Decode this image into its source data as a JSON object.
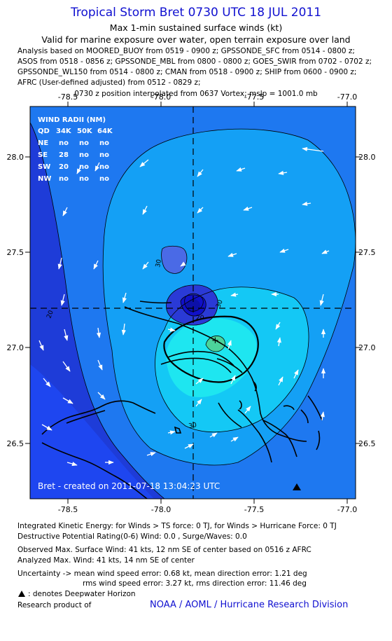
{
  "header": {
    "title": "Tropical Storm Bret 0730 UTC 18 JUL 2011",
    "subtitle": "Max 1-min sustained surface winds (kt)",
    "validity": "Valid for marine exposure over water, open terrain exposure over land",
    "analysis_lines": [
      "Analysis based on MOORED_BUOY from 0519 - 0900 z; GPSSONDE_SFC from 0514 - 0800 z;",
      "ASOS from 0518 - 0856 z; GPSSONDE_MBL from 0800 - 0800 z; GOES_SWIR from 0702 - 0702 z;",
      "GPSSONDE_WL150 from 0514 - 0800 z; CMAN from 0518 - 0900 z; SHIP from 0600 - 0900 z;",
      "AFRC (User-defined adjusted) from 0512 - 0829 z;"
    ],
    "position_note": "0730 z position interpolated from 0637 Vortex; mslp = 1001.0 mb"
  },
  "map": {
    "lon_ticks": [
      "-78.5",
      "-78.0",
      "-77.5",
      "-77.0"
    ],
    "lat_ticks": [
      "28.0",
      "27.5",
      "27.0",
      "26.5"
    ],
    "contour_labels": [
      "30",
      "30",
      "30",
      "20",
      "20"
    ],
    "center_marker": "+",
    "wind_radii": {
      "title": "WIND RADII (NM)",
      "header": [
        "QD",
        "34K",
        "50K",
        "64K"
      ],
      "rows": [
        [
          "NE",
          "no",
          "no",
          "no"
        ],
        [
          "SE",
          "28",
          "no",
          "no"
        ],
        [
          "SW",
          "20",
          "no",
          "no"
        ],
        [
          "NW",
          "no",
          "no",
          "no"
        ]
      ]
    },
    "created_label": "Bret - created on 2011-07-18 13:04:23 UTC",
    "colors": {
      "border": "#1e3cd8",
      "deep": "#1e46f0",
      "mid": "#1e78f0",
      "light": "#14a0f5",
      "cyan": "#14c8f5",
      "bright": "#1ee6f0",
      "green": "#4cd39a",
      "core1": "#4a6ae6",
      "core2": "#2a3ad6",
      "core3": "#1010c8"
    }
  },
  "stats": {
    "ike": "Integrated Kinetic Energy:  for Winds > TS force: 0 TJ,  for Winds > Hurricane Force: 0 TJ",
    "dpr": "Destructive Potential Rating(0-6)  Wind: 0.0 , Surge/Waves: 0.0",
    "observed_max": "Observed Max. Surface Wind: 41 kts, 12 nm SE of center based on 0516 z AFRC",
    "analyzed_max": "Analyzed Max. Wind: 41 kts, 14 nm SE of center",
    "uncertainty_1": "Uncertainty -> mean wind speed error: 0.68 kt,   mean direction error: 1.21 deg",
    "uncertainty_2": "rms wind speed error: 3.27 kt,   rms direction error: 11.46 deg",
    "deepwater_note": ": denotes Deepwater Horizon",
    "research_label": "Research product of",
    "organization": "NOAA / AOML / Hurricane Research Division"
  }
}
